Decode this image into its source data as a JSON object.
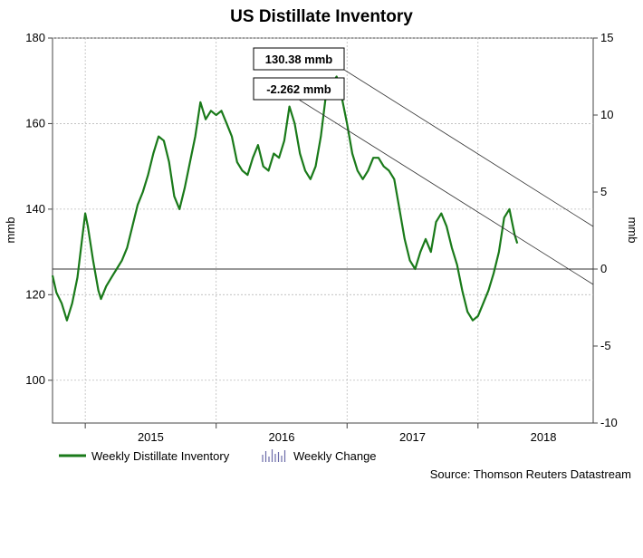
{
  "chart_data": {
    "type": "line",
    "title": "US Distillate Inventory",
    "ylabel": "mmb",
    "y2label": "mmb",
    "ylim": [
      90,
      180
    ],
    "y2lim": [
      -10,
      15
    ],
    "yticks": [
      100,
      120,
      140,
      160,
      180
    ],
    "y2ticks": [
      -10,
      -5,
      0,
      5,
      10,
      15
    ],
    "xlim": [
      2014.25,
      2018.38
    ],
    "xtick_labels": [
      {
        "x": 2015.0,
        "label": "2015"
      },
      {
        "x": 2016.0,
        "label": "2016"
      },
      {
        "x": 2017.0,
        "label": "2017"
      },
      {
        "x": 2018.0,
        "label": "2018"
      }
    ],
    "year_boundaries": [
      2014.5,
      2015.5,
      2016.5,
      2017.5
    ],
    "grid": true,
    "legend_position": "bottom-left",
    "source": "Source: Thomson Reuters Datastream",
    "series": [
      {
        "name": "Weekly Distillate Inventory",
        "kind": "line",
        "color": "#1a7a1a",
        "axis": "left",
        "points": [
          [
            2014.25,
            124.5
          ],
          [
            2014.28,
            120.5
          ],
          [
            2014.32,
            118
          ],
          [
            2014.36,
            114
          ],
          [
            2014.4,
            118
          ],
          [
            2014.44,
            124
          ],
          [
            2014.48,
            134
          ],
          [
            2014.5,
            139
          ],
          [
            2014.52,
            136
          ],
          [
            2014.56,
            128
          ],
          [
            2014.6,
            121
          ],
          [
            2014.62,
            119
          ],
          [
            2014.66,
            122
          ],
          [
            2014.7,
            124
          ],
          [
            2014.74,
            126
          ],
          [
            2014.78,
            128
          ],
          [
            2014.82,
            131
          ],
          [
            2014.86,
            136
          ],
          [
            2014.9,
            141
          ],
          [
            2014.94,
            144
          ],
          [
            2014.98,
            148
          ],
          [
            2015.02,
            153
          ],
          [
            2015.06,
            157
          ],
          [
            2015.1,
            156
          ],
          [
            2015.14,
            151
          ],
          [
            2015.18,
            143
          ],
          [
            2015.22,
            140
          ],
          [
            2015.26,
            145
          ],
          [
            2015.3,
            151
          ],
          [
            2015.34,
            157
          ],
          [
            2015.38,
            165
          ],
          [
            2015.42,
            161
          ],
          [
            2015.46,
            163
          ],
          [
            2015.5,
            162
          ],
          [
            2015.54,
            163
          ],
          [
            2015.58,
            160
          ],
          [
            2015.62,
            157
          ],
          [
            2015.66,
            151
          ],
          [
            2015.7,
            149
          ],
          [
            2015.74,
            148
          ],
          [
            2015.78,
            152
          ],
          [
            2015.82,
            155
          ],
          [
            2015.86,
            150
          ],
          [
            2015.9,
            149
          ],
          [
            2015.94,
            153
          ],
          [
            2015.98,
            152
          ],
          [
            2016.02,
            156
          ],
          [
            2016.06,
            164
          ],
          [
            2016.1,
            160
          ],
          [
            2016.14,
            153
          ],
          [
            2016.18,
            149
          ],
          [
            2016.22,
            147
          ],
          [
            2016.26,
            150
          ],
          [
            2016.3,
            157
          ],
          [
            2016.34,
            167
          ],
          [
            2016.38,
            169
          ],
          [
            2016.42,
            171
          ],
          [
            2016.46,
            166
          ],
          [
            2016.5,
            160
          ],
          [
            2016.54,
            153
          ],
          [
            2016.58,
            149
          ],
          [
            2016.62,
            147
          ],
          [
            2016.66,
            149
          ],
          [
            2016.7,
            152
          ],
          [
            2016.74,
            152
          ],
          [
            2016.78,
            150
          ],
          [
            2016.82,
            149
          ],
          [
            2016.86,
            147
          ],
          [
            2016.9,
            140
          ],
          [
            2016.94,
            133
          ],
          [
            2016.98,
            128
          ],
          [
            2017.02,
            126
          ],
          [
            2017.06,
            130
          ],
          [
            2017.1,
            133
          ],
          [
            2017.14,
            130
          ],
          [
            2017.18,
            137
          ],
          [
            2017.22,
            139
          ],
          [
            2017.26,
            136
          ],
          [
            2017.3,
            131
          ],
          [
            2017.34,
            127
          ],
          [
            2017.38,
            121
          ],
          [
            2017.42,
            116
          ],
          [
            2017.46,
            114
          ],
          [
            2017.5,
            115
          ],
          [
            2017.54,
            118
          ],
          [
            2017.58,
            121
          ],
          [
            2017.62,
            125
          ],
          [
            2017.66,
            130
          ],
          [
            2017.7,
            138
          ],
          [
            2017.74,
            140
          ],
          [
            2017.76,
            137
          ],
          [
            2017.78,
            134
          ],
          [
            2017.8,
            132
          ]
        ]
      },
      {
        "name": "Weekly Change",
        "kind": "bar",
        "color": "#6a6aa8",
        "axis": "right",
        "points": []
      }
    ],
    "annotations": [
      {
        "label": "130.38 mmb"
      },
      {
        "label": "-2.262 mmb"
      }
    ]
  }
}
